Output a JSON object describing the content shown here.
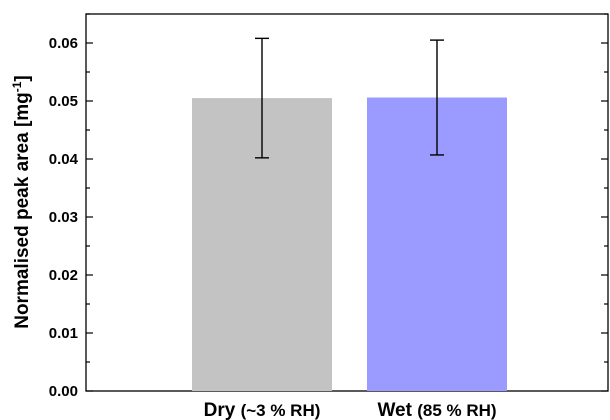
{
  "chart_data": {
    "type": "bar",
    "categories": [
      {
        "main": "Dry",
        "detail": "(~3 % RH)"
      },
      {
        "main": "Wet",
        "detail": "(85 % RH)"
      }
    ],
    "values": [
      0.0505,
      0.0506
    ],
    "errors": [
      0.0103,
      0.0099
    ],
    "colors": [
      "#c3c3c3",
      "#9b9bff"
    ],
    "title": "",
    "xlabel": "",
    "ylabel": "Normalised peak area [mg",
    "ylabel_superscript": "-1",
    "ylabel_suffix": "]",
    "ylim": [
      0,
      0.065
    ],
    "yticks": [
      "0.00",
      "0.01",
      "0.02",
      "0.03",
      "0.04",
      "0.05",
      "0.06"
    ],
    "grid": false,
    "legend": "none"
  }
}
